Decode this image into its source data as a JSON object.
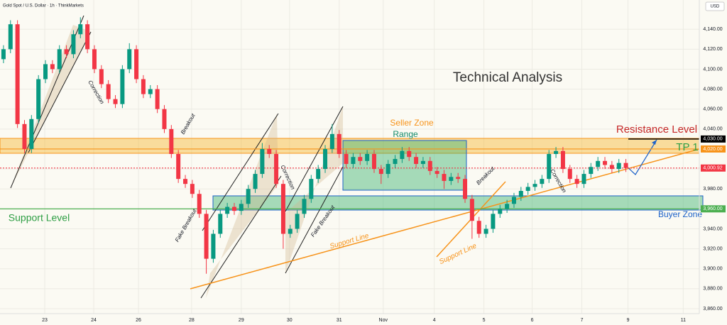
{
  "chart_data": {
    "type": "candlestick",
    "title": "Gold Spot / U.S. Dollar · 1h · ThinkMarkets",
    "currency": "USD",
    "heading": "Technical Analysis",
    "annotations": [
      "Correction",
      "Breakout",
      "Fake Breakout",
      "Correction",
      "Fake Breakout",
      "Support Line",
      "Support Line",
      "Breakout",
      "Correction",
      "Seller Zone",
      "Range",
      "Resistance Level",
      "TP 1",
      "Support Level",
      "Buyer Zone"
    ],
    "up_color": "#089981",
    "down_color": "#f23645",
    "xlim": [
      0,
      100
    ],
    "xticks": [
      {
        "value": 6.4,
        "label": "23"
      },
      {
        "value": 13.4,
        "label": "24"
      },
      {
        "value": 19.8,
        "label": "26"
      },
      {
        "value": 27.4,
        "label": "28"
      },
      {
        "value": 34.5,
        "label": "29"
      },
      {
        "value": 41.4,
        "label": "30"
      },
      {
        "value": 48.5,
        "label": "31"
      },
      {
        "value": 54.8,
        "label": "Nov"
      },
      {
        "value": 62.1,
        "label": "4"
      },
      {
        "value": 69.2,
        "label": "5"
      },
      {
        "value": 76.1,
        "label": "6"
      },
      {
        "value": 83.2,
        "label": "7"
      },
      {
        "value": 89.8,
        "label": "9"
      },
      {
        "value": 97.7,
        "label": "11"
      }
    ],
    "ylim": [
      3855,
      4169.3
    ],
    "yticks": [
      {
        "value": 3860,
        "label": "3,860.00"
      },
      {
        "value": 3880,
        "label": "3,880.00"
      },
      {
        "value": 3900,
        "label": "3,900.00"
      },
      {
        "value": 3920,
        "label": "3,920.00"
      },
      {
        "value": 3940,
        "label": "3,940.00"
      },
      {
        "value": 3960,
        "label": "3,960.00"
      },
      {
        "value": 3980,
        "label": "3,980.00"
      },
      {
        "value": 4000,
        "label": "4,000.00"
      },
      {
        "value": 4020,
        "label": "4,020.00"
      },
      {
        "value": 4040,
        "label": "4,040.00"
      },
      {
        "value": 4060,
        "label": "4,060.00"
      },
      {
        "value": 4080,
        "label": "4,080.00"
      },
      {
        "value": 4100,
        "label": "4,100.00"
      },
      {
        "value": 4120,
        "label": "4,120.00"
      },
      {
        "value": 4140,
        "label": "4,140.00"
      }
    ],
    "price_labels": [
      {
        "value": 4030,
        "label": "4,030.00",
        "color": "#000000"
      },
      {
        "value": 4020,
        "label": "4,020.00",
        "color": "#f7931a"
      },
      {
        "value": 4000.92,
        "label": "4,000.92",
        "color": "#f23645"
      },
      {
        "value": 3960,
        "label": "3,960.00",
        "color": "#4caf50"
      }
    ],
    "candles": [
      [
        4110,
        4124,
        4106,
        4120
      ],
      [
        4120,
        4149,
        4116,
        4145
      ],
      [
        4145,
        4149,
        4041,
        4045
      ],
      [
        4045,
        4049,
        4016,
        4020
      ],
      [
        4020,
        4054,
        4016,
        4050
      ],
      [
        4050,
        4094,
        4046,
        4090
      ],
      [
        4090,
        4109,
        4086,
        4105
      ],
      [
        4105,
        4109,
        4096,
        4100
      ],
      [
        4100,
        4124,
        4096,
        4120
      ],
      [
        4120,
        4124,
        4111,
        4115
      ],
      [
        4115,
        4139,
        4111,
        4135
      ],
      [
        4135,
        4152,
        4131,
        4145
      ],
      [
        4145,
        4149,
        4116,
        4120
      ],
      [
        4120,
        4124,
        4096,
        4100
      ],
      [
        4100,
        4104,
        4081,
        4085
      ],
      [
        4085,
        4089,
        4066,
        4070
      ],
      [
        4070,
        4074,
        4061,
        4065
      ],
      [
        4065,
        4104,
        4061,
        4100
      ],
      [
        4100,
        4126,
        4096,
        4120
      ],
      [
        4120,
        4124,
        4086,
        4090
      ],
      [
        4090,
        4094,
        4071,
        4075
      ],
      [
        4075,
        4084,
        4071,
        4080
      ],
      [
        4080,
        4084,
        4056,
        4060
      ],
      [
        4060,
        4064,
        4036,
        4040
      ],
      [
        4040,
        4044,
        4011,
        4015
      ],
      [
        4015,
        4019,
        3986,
        3990
      ],
      [
        3990,
        3994,
        3981,
        3985
      ],
      [
        3985,
        3989,
        3971,
        3975
      ],
      [
        3975,
        3979,
        3951,
        3955
      ],
      [
        3955,
        3959,
        3895,
        3910
      ],
      [
        3910,
        3939,
        3906,
        3935
      ],
      [
        3935,
        3959,
        3931,
        3955
      ],
      [
        3955,
        3966,
        3951,
        3962
      ],
      [
        3962,
        3966,
        3954,
        3958
      ],
      [
        3958,
        3969,
        3954,
        3965
      ],
      [
        3965,
        3984,
        3961,
        3980
      ],
      [
        3980,
        3999,
        3976,
        3995
      ],
      [
        3995,
        4026,
        3991,
        4020
      ],
      [
        4020,
        4024,
        4011,
        4015
      ],
      [
        4015,
        4019,
        3981,
        3985
      ],
      [
        3985,
        3989,
        3920,
        3935
      ],
      [
        3935,
        3944,
        3931,
        3940
      ],
      [
        3940,
        3959,
        3936,
        3955
      ],
      [
        3955,
        3974,
        3951,
        3970
      ],
      [
        3970,
        3994,
        3966,
        3990
      ],
      [
        3990,
        4004,
        3986,
        4000
      ],
      [
        4000,
        4024,
        3996,
        4020
      ],
      [
        4020,
        4045,
        4016,
        4035
      ],
      [
        4035,
        4039,
        4011,
        4015
      ],
      [
        4015,
        4019,
        4001,
        4005
      ],
      [
        4005,
        4016,
        4001,
        4012
      ],
      [
        4012,
        4016,
        4004,
        4008
      ],
      [
        4008,
        4019,
        4004,
        4015
      ],
      [
        4015,
        4019,
        3996,
        4000
      ],
      [
        4000,
        4004,
        3985,
        3995
      ],
      [
        3995,
        4009,
        3991,
        4005
      ],
      [
        4005,
        4014,
        4001,
        4010
      ],
      [
        4010,
        4022,
        4006,
        4018
      ],
      [
        4018,
        4022,
        4008,
        4012
      ],
      [
        4012,
        4016,
        4001,
        4005
      ],
      [
        4005,
        4012,
        4001,
        4008
      ],
      [
        4008,
        4012,
        3994,
        3998
      ],
      [
        3998,
        4002,
        3991,
        3995
      ],
      [
        3995,
        3999,
        3980,
        3988
      ],
      [
        3988,
        3996,
        3984,
        3992
      ],
      [
        3992,
        3996,
        3986,
        3990
      ],
      [
        3990,
        3994,
        3966,
        3970
      ],
      [
        3970,
        3974,
        3930,
        3948
      ],
      [
        3948,
        3952,
        3931,
        3935
      ],
      [
        3935,
        3944,
        3931,
        3940
      ],
      [
        3940,
        3959,
        3936,
        3955
      ],
      [
        3955,
        3964,
        3951,
        3960
      ],
      [
        3960,
        3969,
        3956,
        3965
      ],
      [
        3965,
        3976,
        3961,
        3972
      ],
      [
        3972,
        3982,
        3968,
        3978
      ],
      [
        3978,
        3986,
        3974,
        3982
      ],
      [
        3982,
        3989,
        3978,
        3985
      ],
      [
        3985,
        3994,
        3981,
        3990
      ],
      [
        3990,
        4019,
        3986,
        4015
      ],
      [
        4015,
        4022,
        4011,
        4018
      ],
      [
        4018,
        4022,
        3996,
        4000
      ],
      [
        4000,
        4004,
        3986,
        3990
      ],
      [
        3990,
        3994,
        3981,
        3985
      ],
      [
        3985,
        3999,
        3981,
        3995
      ],
      [
        3995,
        4006,
        3991,
        4002
      ],
      [
        4002,
        4012,
        3998,
        4008
      ],
      [
        4008,
        4012,
        4000,
        4004
      ],
      [
        4004,
        4008,
        3996,
        4000
      ],
      [
        4000,
        4010,
        3996,
        4006
      ],
      [
        4006,
        4010,
        3997,
        4001
      ]
    ]
  }
}
